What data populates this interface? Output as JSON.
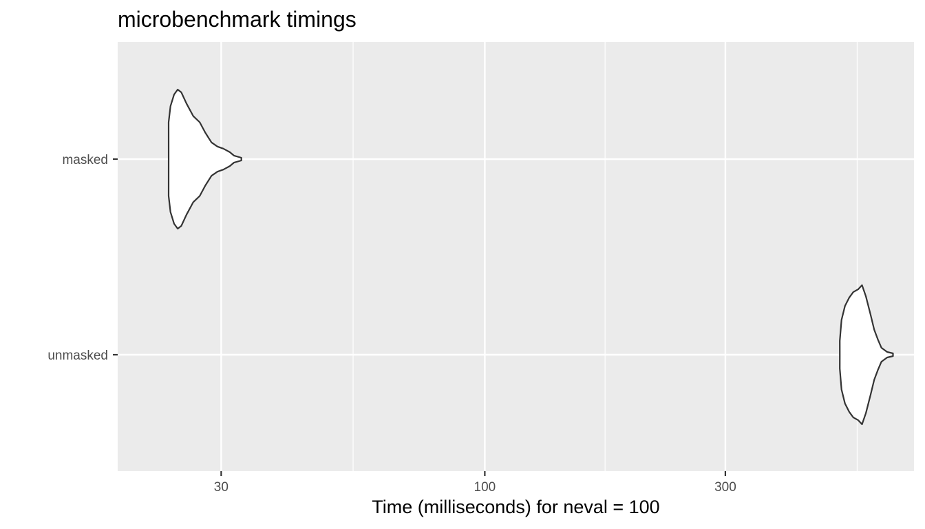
{
  "chart_data": {
    "type": "violin",
    "title": "microbenchmark timings",
    "xlabel": "Time (milliseconds) for neval = 100",
    "ylabel": "",
    "x_scale": "log10",
    "xlim": [
      18.7,
      710
    ],
    "x_major_ticks": [
      30,
      100,
      300
    ],
    "x_tick_labels": [
      "30",
      "100",
      "300"
    ],
    "x_minor_gridlines": [
      54.8,
      173.2,
      547.7
    ],
    "categories": [
      "masked",
      "unmasked"
    ],
    "series": [
      {
        "category": "masked",
        "min": 23.6,
        "max": 32.9,
        "density": [
          [
            23.6,
            0.53
          ],
          [
            23.8,
            0.76
          ],
          [
            24.2,
            0.93
          ],
          [
            24.6,
            1.0
          ],
          [
            25.0,
            0.96
          ],
          [
            25.6,
            0.8
          ],
          [
            26.4,
            0.62
          ],
          [
            27.2,
            0.53
          ],
          [
            27.9,
            0.38
          ],
          [
            28.7,
            0.24
          ],
          [
            29.5,
            0.18
          ],
          [
            30.3,
            0.15
          ],
          [
            31.2,
            0.1
          ],
          [
            31.8,
            0.05
          ],
          [
            32.9,
            0.02
          ]
        ]
      },
      {
        "category": "unmasked",
        "min": 506,
        "max": 645,
        "density": [
          [
            506,
            0.2
          ],
          [
            510,
            0.5
          ],
          [
            518,
            0.7
          ],
          [
            528,
            0.82
          ],
          [
            538,
            0.9
          ],
          [
            550,
            0.94
          ],
          [
            560,
            1.0
          ],
          [
            570,
            0.84
          ],
          [
            582,
            0.58
          ],
          [
            592,
            0.36
          ],
          [
            602,
            0.22
          ],
          [
            612,
            0.1
          ],
          [
            628,
            0.04
          ],
          [
            645,
            0.02
          ]
        ]
      }
    ],
    "panel_background": "#ebebeb",
    "gridline_color": "#ffffff",
    "violin_fill": "#ffffff",
    "violin_outline": "#333333",
    "grid": true,
    "legend": "none"
  }
}
